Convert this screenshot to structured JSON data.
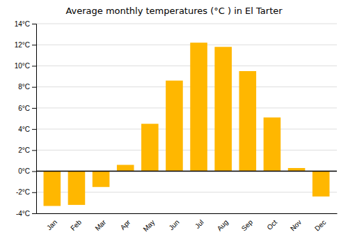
{
  "chart_data": {
    "type": "bar",
    "title": "Average monthly temperatures (°C ) in El Tarter",
    "categories": [
      "Jan",
      "Feb",
      "Mar",
      "Apr",
      "May",
      "Jun",
      "Jul",
      "Aug",
      "Sep",
      "Oct",
      "Nov",
      "Dec"
    ],
    "values": [
      -3.3,
      -3.2,
      -1.5,
      0.6,
      4.5,
      8.6,
      12.2,
      11.8,
      9.5,
      5.1,
      0.3,
      -2.4
    ],
    "color": "#FFB700",
    "ylim": [
      -4,
      14
    ],
    "yticks": [
      {
        "value": -4,
        "label": "-4°C"
      },
      {
        "value": -2,
        "label": "-2°C"
      },
      {
        "value": 0,
        "label": "0°C"
      },
      {
        "value": 2,
        "label": "2°C"
      },
      {
        "value": 4,
        "label": "4°C"
      },
      {
        "value": 6,
        "label": "6°C"
      },
      {
        "value": 8,
        "label": "8°C"
      },
      {
        "value": 10,
        "label": "10°C"
      },
      {
        "value": 12,
        "label": "12°C"
      },
      {
        "value": 14,
        "label": "14°C"
      }
    ],
    "grid": true
  }
}
